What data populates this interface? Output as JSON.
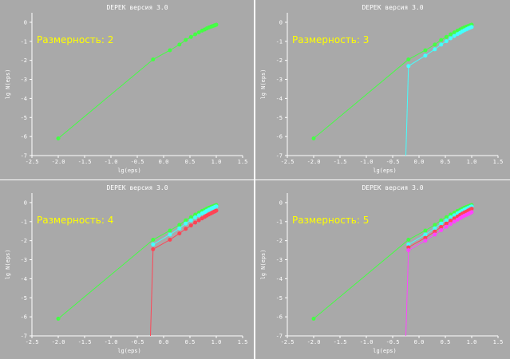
{
  "colors": {
    "background": "#a9a9a9",
    "text": "#ffffff",
    "annotation": "#ffff00",
    "separator": "#ffffff",
    "green": "#44ff44",
    "cyan": "#44ffff",
    "red": "#ff4455",
    "magenta": "#ff44ff"
  },
  "chart_data": [
    {
      "type": "line",
      "title": "DEPEK версия 3.0",
      "annotation": "Размерность: 2",
      "xlabel": "lg(eps)",
      "ylabel": "lg N(eps)",
      "xlim": [
        -2.5,
        1.5
      ],
      "ylim": [
        -7,
        0.5
      ],
      "xticks": [
        -2.5,
        -2.0,
        -1.5,
        -1.0,
        -0.5,
        0.0,
        0.5,
        1.0,
        1.5
      ],
      "xtick_labels": [
        "-2.5",
        "-2.0",
        "-1.5",
        "-1.0",
        "-0.5",
        "0.0",
        "0.5",
        "1.0",
        "1.5"
      ],
      "yticks": [
        0,
        -1,
        -2,
        -3,
        -4,
        -5,
        -6,
        -7
      ],
      "ytick_labels": [
        "0",
        "-1",
        "-2",
        "-3",
        "-4",
        "-5",
        "-6",
        "-7"
      ],
      "series": [
        {
          "color": "green",
          "x": [
            -2.0,
            -0.2,
            0.12,
            0.3,
            0.42,
            0.52,
            0.6,
            0.67,
            0.73,
            0.78,
            0.82,
            0.86,
            0.9,
            0.93,
            0.96,
            0.98,
            1.0
          ],
          "y": [
            -6.1,
            -1.95,
            -1.47,
            -1.17,
            -0.93,
            -0.77,
            -0.63,
            -0.53,
            -0.44,
            -0.38,
            -0.32,
            -0.27,
            -0.23,
            -0.2,
            -0.17,
            -0.15,
            -0.13
          ]
        }
      ]
    },
    {
      "type": "line",
      "title": "DEPEK версия 3.0",
      "annotation": "Размерность: 3",
      "xlabel": "lg(eps)",
      "ylabel": "lg N(eps)",
      "xlim": [
        -2.5,
        1.5
      ],
      "ylim": [
        -7,
        0.5
      ],
      "xticks": [
        -2.5,
        -2.0,
        -1.5,
        -1.0,
        -0.5,
        0.0,
        0.5,
        1.0,
        1.5
      ],
      "xtick_labels": [
        "-2.5",
        "-2.0",
        "-1.5",
        "-1.0",
        "-0.5",
        "0.0",
        "0.5",
        "1.0",
        "1.5"
      ],
      "yticks": [
        0,
        -1,
        -2,
        -3,
        -4,
        -5,
        -6,
        -7
      ],
      "ytick_labels": [
        "0",
        "-1",
        "-2",
        "-3",
        "-4",
        "-5",
        "-6",
        "-7"
      ],
      "series": [
        {
          "color": "green",
          "x": [
            -2.0,
            -0.2,
            0.12,
            0.3,
            0.42,
            0.52,
            0.6,
            0.67,
            0.73,
            0.78,
            0.82,
            0.86,
            0.9,
            0.93,
            0.96,
            0.98,
            1.0
          ],
          "y": [
            -6.1,
            -1.95,
            -1.47,
            -1.17,
            -0.93,
            -0.77,
            -0.63,
            -0.53,
            -0.44,
            -0.38,
            -0.32,
            -0.27,
            -0.23,
            -0.2,
            -0.17,
            -0.15,
            -0.13
          ]
        },
        {
          "color": "cyan",
          "x": [
            -0.25,
            -0.2,
            0.12,
            0.3,
            0.42,
            0.52,
            0.6,
            0.67,
            0.73,
            0.78,
            0.82,
            0.86,
            0.9,
            0.93,
            0.96,
            0.98,
            1.0
          ],
          "y": [
            -7.0,
            -2.3,
            -1.75,
            -1.42,
            -1.17,
            -0.99,
            -0.84,
            -0.72,
            -0.62,
            -0.55,
            -0.48,
            -0.42,
            -0.37,
            -0.33,
            -0.29,
            -0.27,
            -0.25
          ]
        }
      ]
    },
    {
      "type": "line",
      "title": "DEPEK версия 3.0",
      "annotation": "Размерность: 4",
      "xlabel": "lg(eps)",
      "ylabel": "lg N(eps)",
      "xlim": [
        -2.5,
        1.5
      ],
      "ylim": [
        -7,
        0.5
      ],
      "xticks": [
        -2.5,
        -2.0,
        -1.5,
        -1.0,
        -0.5,
        0.0,
        0.5,
        1.0,
        1.5
      ],
      "xtick_labels": [
        "-2.5",
        "-2.0",
        "-1.5",
        "-1.0",
        "-0.5",
        "0.0",
        "0.5",
        "1.0",
        "1.5"
      ],
      "yticks": [
        0,
        -1,
        -2,
        -3,
        -4,
        -5,
        -6,
        -7
      ],
      "ytick_labels": [
        "0",
        "-1",
        "-2",
        "-3",
        "-4",
        "-5",
        "-6",
        "-7"
      ],
      "series": [
        {
          "color": "green",
          "x": [
            -2.0,
            -0.2,
            0.12,
            0.3,
            0.42,
            0.52,
            0.6,
            0.67,
            0.73,
            0.78,
            0.82,
            0.86,
            0.9,
            0.93,
            0.96,
            0.98,
            1.0
          ],
          "y": [
            -6.1,
            -1.95,
            -1.47,
            -1.17,
            -0.93,
            -0.77,
            -0.63,
            -0.53,
            -0.44,
            -0.38,
            -0.32,
            -0.27,
            -0.23,
            -0.2,
            -0.17,
            -0.15,
            -0.13
          ]
        },
        {
          "color": "cyan",
          "x": [
            -0.2,
            0.12,
            0.3,
            0.42,
            0.52,
            0.6,
            0.67,
            0.73,
            0.78,
            0.82,
            0.86,
            0.9,
            0.93,
            0.96,
            0.98,
            1.0
          ],
          "y": [
            -2.2,
            -1.68,
            -1.35,
            -1.1,
            -0.93,
            -0.78,
            -0.67,
            -0.57,
            -0.5,
            -0.43,
            -0.37,
            -0.32,
            -0.28,
            -0.25,
            -0.22,
            -0.2
          ]
        },
        {
          "color": "red",
          "x": [
            -0.25,
            -0.2,
            0.12,
            0.3,
            0.42,
            0.52,
            0.6,
            0.67,
            0.73,
            0.78,
            0.82,
            0.86,
            0.9,
            0.93,
            0.96,
            0.98,
            1.0
          ],
          "y": [
            -7.0,
            -2.45,
            -1.95,
            -1.62,
            -1.38,
            -1.2,
            -1.05,
            -0.93,
            -0.83,
            -0.75,
            -0.68,
            -0.62,
            -0.57,
            -0.52,
            -0.48,
            -0.45,
            -0.42
          ]
        }
      ]
    },
    {
      "type": "line",
      "title": "DEPEK версия 3.0",
      "annotation": "Размерность: 5",
      "xlabel": "lg(eps)",
      "ylabel": "lg N(eps)",
      "xlim": [
        -2.5,
        1.5
      ],
      "ylim": [
        -7,
        0.5
      ],
      "xticks": [
        -2.5,
        -2.0,
        -1.5,
        -1.0,
        -0.5,
        0.0,
        0.5,
        1.0,
        1.5
      ],
      "xtick_labels": [
        "-2.5",
        "-2.0",
        "-1.5",
        "-1.0",
        "-0.5",
        "0.0",
        "0.5",
        "1.0",
        "1.5"
      ],
      "yticks": [
        0,
        -1,
        -2,
        -3,
        -4,
        -5,
        -6,
        -7
      ],
      "ytick_labels": [
        "0",
        "-1",
        "-2",
        "-3",
        "-4",
        "-5",
        "-6",
        "-7"
      ],
      "series": [
        {
          "color": "green",
          "x": [
            -2.0,
            -0.2,
            0.12,
            0.3,
            0.42,
            0.52,
            0.6,
            0.67,
            0.73,
            0.78,
            0.82,
            0.86,
            0.9,
            0.93,
            0.96,
            0.98,
            1.0
          ],
          "y": [
            -6.1,
            -1.95,
            -1.47,
            -1.17,
            -0.93,
            -0.77,
            -0.63,
            -0.53,
            -0.44,
            -0.38,
            -0.32,
            -0.27,
            -0.23,
            -0.2,
            -0.17,
            -0.15,
            -0.13
          ]
        },
        {
          "color": "cyan",
          "x": [
            -0.2,
            0.12,
            0.3,
            0.42,
            0.52,
            0.6,
            0.67,
            0.73,
            0.78,
            0.82,
            0.86,
            0.9,
            0.93,
            0.96,
            0.98,
            1.0
          ],
          "y": [
            -2.2,
            -1.68,
            -1.35,
            -1.1,
            -0.93,
            -0.78,
            -0.67,
            -0.57,
            -0.5,
            -0.43,
            -0.37,
            -0.32,
            -0.28,
            -0.25,
            -0.22,
            -0.2
          ]
        },
        {
          "color": "red",
          "x": [
            -0.2,
            0.12,
            0.3,
            0.42,
            0.52,
            0.6,
            0.67,
            0.73,
            0.78,
            0.82,
            0.86,
            0.9,
            0.93,
            0.96,
            0.98,
            1.0
          ],
          "y": [
            -2.35,
            -1.85,
            -1.52,
            -1.28,
            -1.1,
            -0.95,
            -0.83,
            -0.73,
            -0.65,
            -0.58,
            -0.52,
            -0.47,
            -0.42,
            -0.38,
            -0.35,
            -0.32
          ]
        },
        {
          "color": "magenta",
          "x": [
            -0.25,
            -0.2,
            0.12,
            0.3,
            0.42,
            0.52,
            0.6,
            0.67,
            0.73,
            0.78,
            0.82,
            0.86,
            0.9,
            0.93,
            0.96,
            0.98,
            1.0
          ],
          "y": [
            -7.0,
            -2.5,
            -2.0,
            -1.68,
            -1.45,
            -1.27,
            -1.12,
            -1.0,
            -0.9,
            -0.82,
            -0.75,
            -0.69,
            -0.64,
            -0.6,
            -0.56,
            -0.53,
            -0.5
          ]
        }
      ]
    }
  ]
}
